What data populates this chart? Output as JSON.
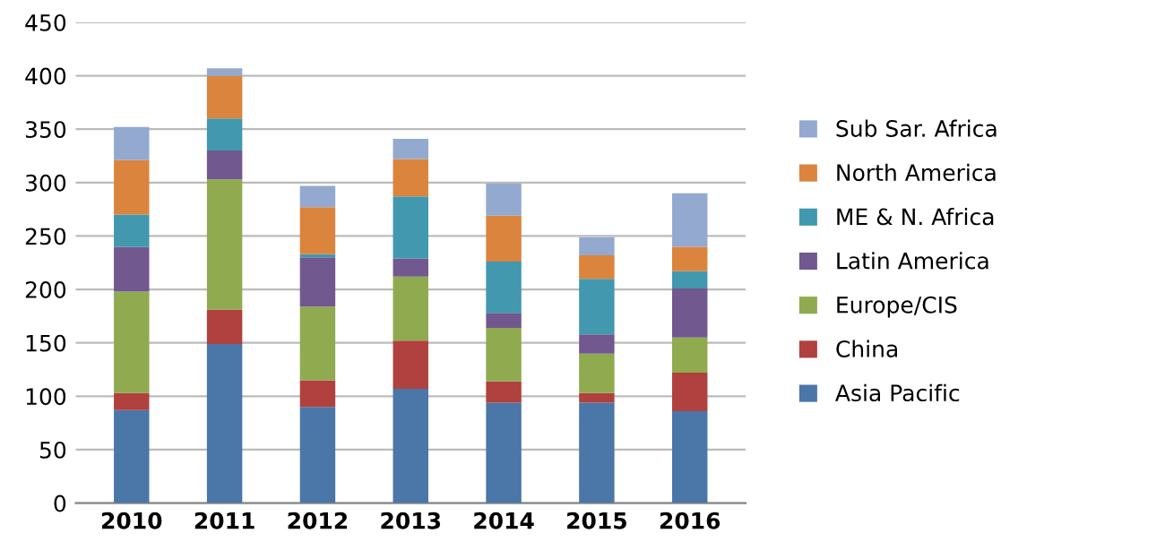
{
  "chart_data": {
    "type": "bar",
    "stacked": true,
    "categories": [
      "2010",
      "2011",
      "2012",
      "2013",
      "2014",
      "2015",
      "2016"
    ],
    "series": [
      {
        "name": "Asia Pacific",
        "color": "#4a76a8",
        "values": [
          87,
          149,
          90,
          107,
          94,
          94,
          86
        ]
      },
      {
        "name": "China",
        "color": "#b0413e",
        "values": [
          16,
          32,
          25,
          45,
          20,
          9,
          36
        ]
      },
      {
        "name": "Europe/CIS",
        "color": "#8faa4f",
        "values": [
          95,
          122,
          69,
          60,
          50,
          37,
          33
        ]
      },
      {
        "name": "Latin America",
        "color": "#71588f",
        "values": [
          42,
          27,
          46,
          17,
          14,
          18,
          46
        ]
      },
      {
        "name": "ME & N. Africa",
        "color": "#4198af",
        "values": [
          30,
          30,
          3,
          58,
          48,
          52,
          16
        ]
      },
      {
        "name": "North America",
        "color": "#db843d",
        "values": [
          51,
          40,
          44,
          35,
          43,
          22,
          23
        ]
      },
      {
        "name": "Sub Sar. Africa",
        "color": "#93a9cf",
        "values": [
          31,
          7,
          20,
          19,
          30,
          17,
          50
        ]
      }
    ],
    "ylim": [
      0,
      450
    ],
    "yticks": [
      0,
      50,
      100,
      150,
      200,
      250,
      300,
      350,
      400,
      450
    ],
    "grid": "y",
    "legend": "right"
  }
}
